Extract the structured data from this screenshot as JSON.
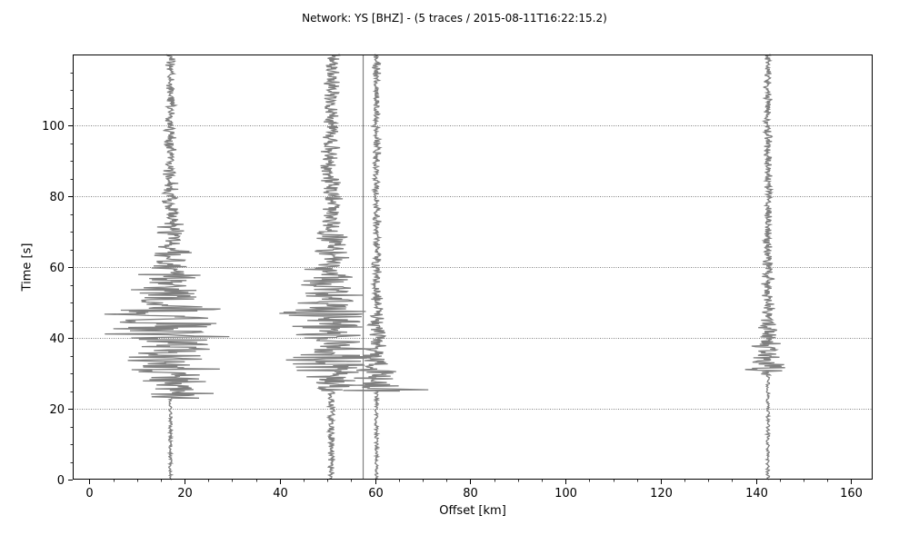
{
  "chart_data": {
    "type": "seismic-record-section",
    "title": "Network: YS [BHZ] - (5 traces / 2015-08-11T16:22:15.2)",
    "xlabel": "Offset [km]",
    "ylabel": "Time [s]",
    "xlim": [
      -3.5,
      164.5
    ],
    "ylim": [
      0,
      120
    ],
    "x_ticks": [
      0,
      20,
      40,
      60,
      80,
      100,
      120,
      140,
      160
    ],
    "y_ticks": [
      0,
      20,
      40,
      60,
      80,
      100
    ],
    "grid": {
      "axis": "y",
      "style": "dotted"
    },
    "trace_color": "#808080",
    "traces": [
      {
        "offset_km": 17.0,
        "onset_s": 23.0,
        "peak_s": 45.5,
        "max_amplitude_km": 16.0,
        "coda_amplitude_km": 1.0
      },
      {
        "offset_km": 50.8,
        "onset_s": 25.0,
        "peak_s": 45.0,
        "max_amplitude_km": 11.0,
        "coda_amplitude_km": 2.0
      },
      {
        "offset_km": 57.5,
        "onset_s": 0,
        "peak_s": 0,
        "max_amplitude_km": 0.0,
        "coda_amplitude_km": 0.0
      },
      {
        "offset_km": 60.3,
        "onset_s": 25.0,
        "peak_s": 25.0,
        "max_amplitude_km": 14.5,
        "coda_amplitude_km": 1.0
      },
      {
        "offset_km": 142.5,
        "onset_s": 29.5,
        "peak_s": 29.5,
        "max_amplitude_km": 14.0,
        "coda_amplitude_km": 1.0
      }
    ]
  }
}
